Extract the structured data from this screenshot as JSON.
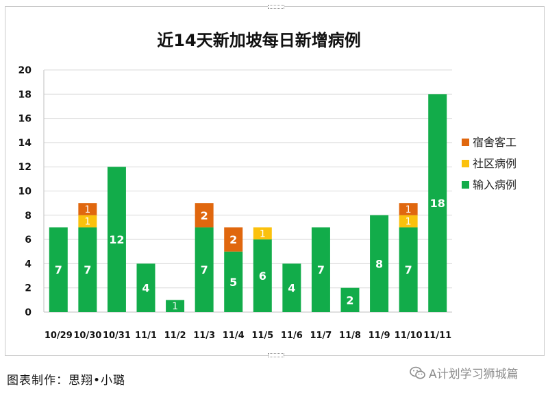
{
  "chart_data": {
    "type": "bar",
    "stacked": true,
    "title": "近14天新加坡每日新增病例",
    "categories": [
      "10/29",
      "10/30",
      "10/31",
      "11/1",
      "11/2",
      "11/3",
      "11/4",
      "11/5",
      "11/6",
      "11/7",
      "11/8",
      "11/9",
      "11/10",
      "11/11"
    ],
    "series": [
      {
        "name": "输入病例",
        "color": "#12ac4a",
        "values": [
          7,
          7,
          12,
          4,
          1,
          7,
          5,
          6,
          4,
          7,
          2,
          8,
          7,
          18
        ]
      },
      {
        "name": "社区病例",
        "color": "#fbc10d",
        "values": [
          0,
          1,
          0,
          0,
          0,
          0,
          0,
          1,
          0,
          0,
          0,
          0,
          1,
          0
        ]
      },
      {
        "name": "宿舍客工",
        "color": "#e0670e",
        "values": [
          0,
          1,
          0,
          0,
          0,
          2,
          2,
          0,
          0,
          0,
          0,
          0,
          1,
          0
        ]
      }
    ],
    "ylim": [
      0,
      20
    ],
    "yticks": [
      0,
      2,
      4,
      6,
      8,
      10,
      12,
      14,
      16,
      18,
      20
    ],
    "grid": true,
    "legend_position": "right",
    "legend_order": [
      "宿舍客工",
      "社区病例",
      "输入病例"
    ],
    "xlabel": "",
    "ylabel": ""
  },
  "footer": {
    "credit": "图表制作：思翔•小璐",
    "watermark": "A计划学习狮城篇",
    "watermark_icon": "wechat-icon"
  }
}
